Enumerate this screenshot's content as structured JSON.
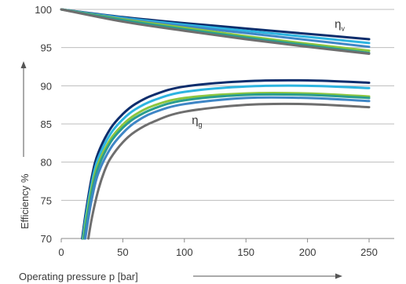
{
  "chart_data": {
    "type": "line",
    "xlabel": "Operating pressure p [bar]",
    "ylabel": "Efficiency %",
    "xlim": [
      0,
      250
    ],
    "ylim": [
      70,
      100
    ],
    "x_ticks": [
      0,
      50,
      100,
      150,
      200,
      250
    ],
    "y_ticks": [
      70,
      75,
      80,
      85,
      90,
      95,
      100
    ],
    "grid": "horizontal",
    "annotations": [
      {
        "text": "η",
        "sub": "v",
        "x": 222,
        "y": 97.6
      },
      {
        "text": "η",
        "sub": "g",
        "x": 106,
        "y": 85.0
      }
    ],
    "series": [
      {
        "group": "v",
        "color": "#0d2d6c",
        "x": [
          0,
          50,
          100,
          150,
          200,
          250
        ],
        "y": [
          100,
          99.0,
          98.2,
          97.5,
          96.8,
          96.1
        ]
      },
      {
        "group": "v",
        "color": "#2db4e0",
        "x": [
          0,
          50,
          100,
          150,
          200,
          250
        ],
        "y": [
          100,
          98.9,
          98.0,
          97.2,
          96.4,
          95.6
        ]
      },
      {
        "group": "v",
        "color": "#3f86c6",
        "x": [
          0,
          50,
          100,
          150,
          200,
          250
        ],
        "y": [
          100,
          98.8,
          97.8,
          96.9,
          96.0,
          95.1
        ]
      },
      {
        "group": "v",
        "color": "#8cc63f",
        "x": [
          0,
          50,
          100,
          150,
          200,
          250
        ],
        "y": [
          100,
          98.7,
          97.6,
          96.5,
          95.5,
          94.6
        ]
      },
      {
        "group": "v",
        "color": "#2a9d8f",
        "x": [
          0,
          50,
          100,
          150,
          200,
          250
        ],
        "y": [
          100,
          98.6,
          97.4,
          96.3,
          95.3,
          94.3
        ]
      },
      {
        "group": "v",
        "color": "#6e6e6e",
        "x": [
          0,
          50,
          100,
          150,
          200,
          250
        ],
        "y": [
          100,
          98.4,
          97.2,
          96.1,
          95.1,
          94.2
        ]
      },
      {
        "group": "g",
        "color": "#0d2d6c",
        "x": [
          17,
          20,
          25,
          30,
          40,
          50,
          60,
          75,
          100,
          150,
          200,
          250
        ],
        "y": [
          70,
          73.5,
          78.2,
          81.2,
          84.4,
          86.3,
          87.6,
          88.8,
          89.9,
          90.6,
          90.7,
          90.4
        ]
      },
      {
        "group": "g",
        "color": "#2db4e0",
        "x": [
          17.5,
          20,
          25,
          30,
          40,
          50,
          60,
          75,
          100,
          150,
          200,
          250
        ],
        "y": [
          70,
          72.9,
          77.5,
          80.5,
          83.7,
          85.6,
          86.9,
          88.1,
          89.2,
          89.9,
          90.0,
          89.7
        ]
      },
      {
        "group": "g",
        "color": "#8cc63f",
        "x": [
          18,
          20,
          25,
          30,
          40,
          50,
          60,
          75,
          100,
          150,
          200,
          250
        ],
        "y": [
          70,
          72.2,
          76.8,
          79.8,
          83.0,
          84.9,
          86.2,
          87.4,
          88.4,
          89.0,
          89.0,
          88.6
        ]
      },
      {
        "group": "g",
        "color": "#2a9d8f",
        "x": [
          18.5,
          20,
          25,
          30,
          40,
          50,
          60,
          75,
          100,
          150,
          200,
          250
        ],
        "y": [
          70,
          71.6,
          76.2,
          79.3,
          82.6,
          84.5,
          85.8,
          87.0,
          88.1,
          88.8,
          88.8,
          88.4
        ]
      },
      {
        "group": "g",
        "color": "#3f86c6",
        "x": [
          19.5,
          22,
          25,
          30,
          40,
          50,
          60,
          75,
          100,
          150,
          200,
          250
        ],
        "y": [
          70,
          72.6,
          75.3,
          78.5,
          81.8,
          83.8,
          85.2,
          86.5,
          87.6,
          88.4,
          88.4,
          88.0
        ]
      },
      {
        "group": "g",
        "color": "#6e6e6e",
        "x": [
          22,
          25,
          30,
          35,
          40,
          50,
          60,
          75,
          100,
          150,
          200,
          250
        ],
        "y": [
          70,
          72.8,
          76.3,
          78.8,
          80.5,
          82.6,
          84.0,
          85.3,
          86.6,
          87.5,
          87.6,
          87.2
        ]
      }
    ]
  }
}
